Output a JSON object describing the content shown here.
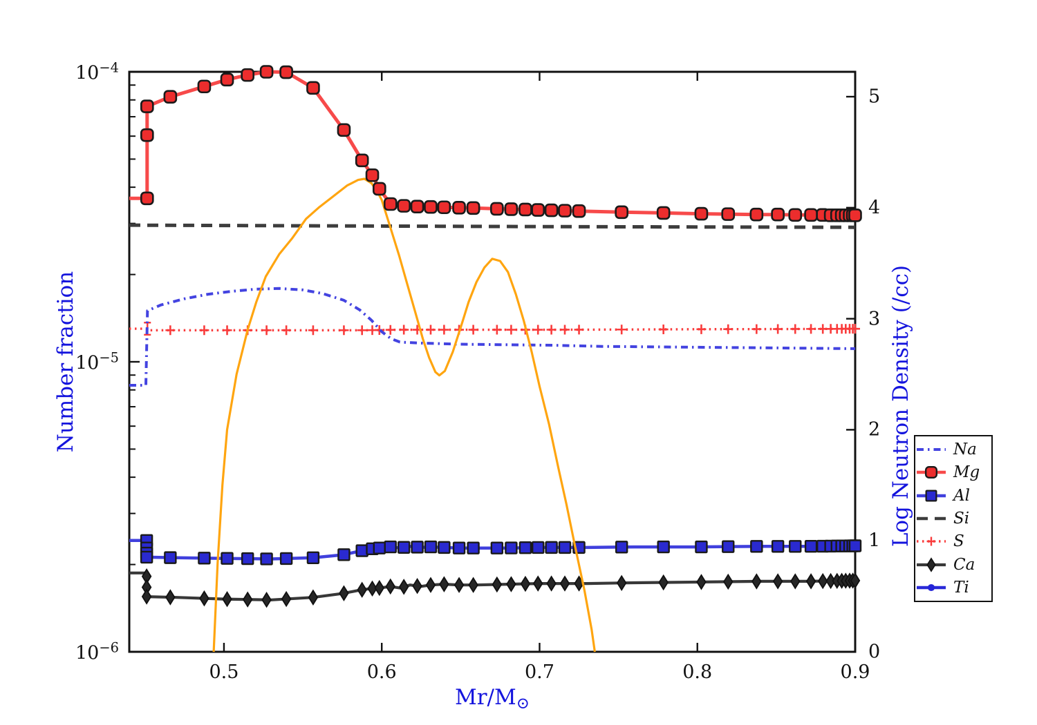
{
  "figure": {
    "background": "#ffffff"
  },
  "chart_data": {
    "type": "line",
    "title": "",
    "xlabel_main": "Mr/M",
    "xlabel_sub": "⊙",
    "ylabel": "Number fraction",
    "ylabel_right": "Log Neutron Density (/cc)",
    "legend_position": "outside-right",
    "grid": false,
    "colors": {
      "axis_label_blue": "#1414dd",
      "tick_text": "#111111",
      "spine": "#111111",
      "red_line": "#f74a4a",
      "red_marker": "#ec2d2d",
      "dotted_red": "#f93b3b",
      "blue_line": "#4343e0",
      "blue_marker": "#2a2ad0",
      "dark_gray": "#3d3d3d",
      "diamond_fill": "#262626",
      "orange": "#ffa510",
      "marker_edge": "#1a1a1a"
    },
    "axes": {
      "x": {
        "min": 0.44,
        "max": 0.9,
        "ticks": [
          {
            "value": 0.5,
            "label": "0.5"
          },
          {
            "value": 0.6,
            "label": "0.6"
          },
          {
            "value": 0.7,
            "label": "0.7"
          },
          {
            "value": 0.8,
            "label": "0.8"
          },
          {
            "value": 0.9,
            "label": "0.9"
          }
        ]
      },
      "y_left": {
        "scale": "log",
        "min": 1e-06,
        "max": 0.0001,
        "ticks": [
          {
            "value": 0.0001,
            "base": "10",
            "exp": "−4"
          },
          {
            "value": 1e-05,
            "base": "10",
            "exp": "−5"
          },
          {
            "value": 1e-06,
            "base": "10",
            "exp": "−6"
          }
        ],
        "minor_ticks": [
          2e-06,
          3e-06,
          4e-06,
          5e-06,
          6e-06,
          7e-06,
          8e-06,
          9e-06,
          2e-05,
          3e-05,
          4e-05,
          5e-05,
          6e-05,
          7e-05,
          8e-05,
          9e-05
        ]
      },
      "y_right": {
        "min": 0,
        "max": 5.224,
        "ticks": [
          {
            "value": 0,
            "label": "0"
          },
          {
            "value": 1,
            "label": "1"
          },
          {
            "value": 2,
            "label": "2"
          },
          {
            "value": 3,
            "label": "3"
          },
          {
            "value": 4,
            "label": "4"
          },
          {
            "value": 5,
            "label": "5"
          }
        ]
      }
    },
    "marker_grid": [
      0.466,
      0.4875,
      0.502,
      0.515,
      0.527,
      0.5395,
      0.5565,
      0.576,
      0.5875,
      0.594,
      0.5985,
      0.6055,
      0.614,
      0.6225,
      0.631,
      0.6395,
      0.649,
      0.658,
      0.673,
      0.682,
      0.691,
      0.699,
      0.7075,
      0.716,
      0.725,
      0.752,
      0.7785,
      0.8025,
      0.8195,
      0.8375,
      0.851,
      0.862,
      0.872,
      0.8795,
      0.8845,
      0.8885,
      0.8915,
      0.894,
      0.8965,
      0.8985,
      0.9
    ],
    "series": [
      {
        "name": "Na",
        "label": "Na",
        "z": 3,
        "axis": "left",
        "color": "#4343e0",
        "line": "dashdot",
        "width": 4,
        "marker": "none",
        "in_legend": true,
        "x": [
          0.44,
          0.4505,
          0.4515,
          0.46,
          0.475,
          0.49,
          0.505,
          0.52,
          0.535,
          0.55,
          0.5625,
          0.576,
          0.586,
          0.5935,
          0.6,
          0.606,
          0.6115,
          0.625,
          0.65,
          0.68,
          0.71,
          0.74,
          0.78,
          0.82,
          0.86,
          0.9
        ],
        "y": [
          8.3e-06,
          8.3e-06,
          1.5e-05,
          1.57e-05,
          1.65e-05,
          1.71e-05,
          1.75e-05,
          1.78e-05,
          1.79e-05,
          1.77e-05,
          1.72e-05,
          1.63e-05,
          1.51e-05,
          1.39e-05,
          1.27e-05,
          1.2e-05,
          1.17e-05,
          1.16e-05,
          1.15e-05,
          1.145e-05,
          1.14e-05,
          1.13e-05,
          1.125e-05,
          1.12e-05,
          1.115e-05,
          1.11e-05
        ]
      },
      {
        "name": "Mg",
        "label": "Mg",
        "z": 7,
        "axis": "left",
        "color": "#f74a4a",
        "line": "solid",
        "width": 5,
        "marker": "rsquare",
        "msize": 17,
        "mfill": "#ec2d2d",
        "medge": "#1a1a1a",
        "in_legend": true,
        "x": [
          0.44,
          0.4513,
          0.4513,
          0.466,
          0.4875,
          0.502,
          0.515,
          0.527,
          0.5395,
          0.5565,
          0.576,
          0.5875,
          0.594,
          0.5985,
          0.6055,
          0.614,
          0.6225,
          0.631,
          0.6395,
          0.649,
          0.658,
          0.673,
          0.682,
          0.691,
          0.699,
          0.7075,
          0.716,
          0.725,
          0.752,
          0.7785,
          0.8025,
          0.8195,
          0.8375,
          0.851,
          0.862,
          0.872,
          0.8795,
          0.8845,
          0.8885,
          0.8915,
          0.894,
          0.8965,
          0.8985,
          0.9
        ],
        "y": [
          3.66e-05,
          3.66e-05,
          7.6e-05,
          8.2e-05,
          8.9e-05,
          9.4e-05,
          9.75e-05,
          0.0001,
          9.97e-05,
          8.8e-05,
          6.3e-05,
          4.95e-05,
          4.4e-05,
          3.95e-05,
          3.5e-05,
          3.45e-05,
          3.43e-05,
          3.42e-05,
          3.41e-05,
          3.4e-05,
          3.39e-05,
          3.37e-05,
          3.36e-05,
          3.35e-05,
          3.34e-05,
          3.33e-05,
          3.32e-05,
          3.31e-05,
          3.28e-05,
          3.26e-05,
          3.24e-05,
          3.23e-05,
          3.22e-05,
          3.22e-05,
          3.21e-05,
          3.21e-05,
          3.21e-05,
          3.2e-05,
          3.2e-05,
          3.2e-05,
          3.2e-05,
          3.2e-05,
          3.2e-05,
          3.2e-05
        ],
        "extra_markers": [
          [
            0.4513,
            3.66e-05
          ],
          [
            0.4513,
            6.05e-05
          ],
          [
            0.4513,
            7.6e-05
          ]
        ]
      },
      {
        "name": "Al",
        "label": "Al",
        "z": 5,
        "axis": "left",
        "color": "#4040dd",
        "line": "solid",
        "width": 4.5,
        "marker": "square",
        "msize": 16,
        "mfill": "#2a2ad0",
        "medge": "#1a1a1a",
        "in_legend": true,
        "x": [
          0.44,
          0.451,
          0.451,
          0.47,
          0.5,
          0.53,
          0.5565,
          0.5755,
          0.5855,
          0.592,
          0.5985,
          0.6055,
          0.6115,
          0.618,
          0.6245,
          0.631,
          0.6395,
          0.649,
          0.66,
          0.68,
          0.7,
          0.73,
          0.76,
          0.8,
          0.84,
          0.87,
          0.9
        ],
        "y": [
          2.42e-06,
          2.42e-06,
          2.12e-06,
          2.11e-06,
          2.1e-06,
          2.09e-06,
          2.11e-06,
          2.16e-06,
          2.22e-06,
          2.26e-06,
          2.28e-06,
          2.3e-06,
          2.28e-06,
          2.31e-06,
          2.29e-06,
          2.3e-06,
          2.29e-06,
          2.28e-06,
          2.28e-06,
          2.28e-06,
          2.29e-06,
          2.29e-06,
          2.3e-06,
          2.3e-06,
          2.31e-06,
          2.31e-06,
          2.32e-06
        ],
        "extra_markers": [
          [
            0.451,
            2.42e-06
          ],
          [
            0.451,
            2.28e-06
          ],
          [
            0.451,
            2.19e-06
          ],
          [
            0.451,
            2.12e-06
          ]
        ]
      },
      {
        "name": "Si",
        "label": "Si",
        "z": 1,
        "axis": "left",
        "color": "#3d3d3d",
        "line": "dashed",
        "width": 5,
        "marker": "none",
        "in_legend": true,
        "x": [
          0.44,
          0.55,
          0.7,
          0.9
        ],
        "y": [
          2.96e-05,
          2.945e-05,
          2.925e-05,
          2.91e-05
        ]
      },
      {
        "name": "S",
        "label": "S",
        "z": 2,
        "axis": "left",
        "color": "#f93b3b",
        "line": "dotted",
        "width": 3.4,
        "marker": "plus",
        "msize": 14,
        "mfill": "#f93b3b",
        "medge": "#f93b3b",
        "in_legend": true,
        "x": [
          0.44,
          0.451,
          0.4515,
          0.5,
          0.55,
          0.59,
          0.61,
          0.65,
          0.7,
          0.75,
          0.8,
          0.85,
          0.9
        ],
        "y": [
          1.3e-05,
          1.3e-05,
          1.285e-05,
          1.285e-05,
          1.285e-05,
          1.285e-05,
          1.29e-05,
          1.29e-05,
          1.29e-05,
          1.292e-05,
          1.295e-05,
          1.297e-05,
          1.3e-05
        ],
        "errorbars": [
          {
            "x": 0.4515,
            "lo": 1.24e-05,
            "hi": 1.365e-05
          }
        ]
      },
      {
        "name": "Ca",
        "label": "Ca",
        "z": 4,
        "axis": "left",
        "color": "#383838",
        "line": "solid",
        "width": 4.2,
        "marker": "diamond",
        "msize": 20,
        "mfill": "#262626",
        "medge": "#111111",
        "in_legend": true,
        "x": [
          0.44,
          0.451,
          0.451,
          0.47,
          0.5,
          0.53,
          0.5565,
          0.5755,
          0.5855,
          0.592,
          0.5985,
          0.6055,
          0.6115,
          0.618,
          0.6245,
          0.631,
          0.6395,
          0.649,
          0.66,
          0.68,
          0.7,
          0.73,
          0.76,
          0.8,
          0.84,
          0.87,
          0.9
        ],
        "y": [
          1.87e-06,
          1.87e-06,
          1.55e-06,
          1.54e-06,
          1.52e-06,
          1.51e-06,
          1.54e-06,
          1.59e-06,
          1.63e-06,
          1.65e-06,
          1.66e-06,
          1.68e-06,
          1.66e-06,
          1.7e-06,
          1.68e-06,
          1.7e-06,
          1.71e-06,
          1.7e-06,
          1.7e-06,
          1.71e-06,
          1.72e-06,
          1.72e-06,
          1.73e-06,
          1.74e-06,
          1.75e-06,
          1.75e-06,
          1.76e-06
        ],
        "extra_markers": [
          [
            0.451,
            1.82e-06
          ],
          [
            0.451,
            1.67e-06
          ],
          [
            0.451,
            1.55e-06
          ]
        ]
      },
      {
        "name": "Ti",
        "label": "Ti",
        "z": 0,
        "axis": "left",
        "color": "#2a2ad8",
        "line": "solid",
        "width": 4.5,
        "marker": "circle",
        "msize": 11,
        "mfill": "#2424d8",
        "medge": "#2424d8",
        "in_legend": true,
        "x": [],
        "y": []
      },
      {
        "name": "neutron_density",
        "label": "",
        "z": 6,
        "axis": "right",
        "color": "#ffa510",
        "line": "solid",
        "width": 3.2,
        "marker": "none",
        "in_legend": false,
        "x": [
          0.4935,
          0.496,
          0.499,
          0.502,
          0.508,
          0.515,
          0.5205,
          0.5265,
          0.535,
          0.543,
          0.552,
          0.56,
          0.569,
          0.578,
          0.585,
          0.589,
          0.5935,
          0.597,
          0.6,
          0.6055,
          0.611,
          0.616,
          0.621,
          0.626,
          0.63,
          0.634,
          0.6365,
          0.64,
          0.645,
          0.65,
          0.655,
          0.66,
          0.665,
          0.67,
          0.675,
          0.68,
          0.685,
          0.69,
          0.695,
          0.7,
          0.706,
          0.712,
          0.717,
          0.7225,
          0.7285,
          0.733,
          0.735
        ],
        "y": [
          0.0,
          0.8,
          1.5,
          2.0,
          2.5,
          2.9,
          3.15,
          3.38,
          3.58,
          3.72,
          3.9,
          4.0,
          4.1,
          4.2,
          4.25,
          4.26,
          4.22,
          4.15,
          4.07,
          3.82,
          3.57,
          3.32,
          3.07,
          2.82,
          2.65,
          2.52,
          2.49,
          2.53,
          2.7,
          2.92,
          3.15,
          3.33,
          3.46,
          3.54,
          3.52,
          3.42,
          3.22,
          2.98,
          2.7,
          2.39,
          2.05,
          1.65,
          1.33,
          0.95,
          0.55,
          0.2,
          0.0
        ]
      }
    ]
  }
}
